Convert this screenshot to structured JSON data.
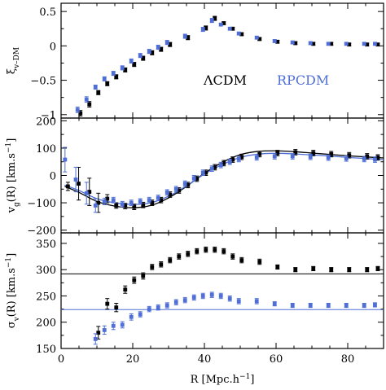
{
  "chart_data": [
    {
      "type": "scatter",
      "panel": "top",
      "ylabel": "ξ",
      "ylabel_sub": "v–DM",
      "xlim": [
        0,
        90
      ],
      "ylim": [
        -1.05,
        0.62
      ],
      "yticks": [
        -1,
        -0.5,
        0,
        0.5
      ],
      "ytick_labels": [
        "−1",
        "−0.5",
        "0",
        "0.5"
      ],
      "xticks": [
        0,
        20,
        40,
        60,
        80
      ],
      "legend": [
        {
          "label": "ΛCDM",
          "color": "#000000"
        },
        {
          "label": "RPCDM",
          "color": "#4f6fd6"
        }
      ],
      "series": [
        {
          "name": "ΛCDM",
          "color": "#000000",
          "x": [
            5,
            7.5,
            10,
            12.5,
            15,
            17.5,
            20,
            22.5,
            25,
            27.5,
            30,
            35,
            40,
            42.5,
            45,
            47.5,
            50,
            55,
            60,
            65,
            70,
            75,
            80,
            85,
            88
          ],
          "y": [
            -0.98,
            -0.85,
            -0.68,
            -0.55,
            -0.45,
            -0.35,
            -0.27,
            -0.18,
            -0.1,
            -0.05,
            0.02,
            0.12,
            0.26,
            0.4,
            0.33,
            0.25,
            0.17,
            0.1,
            0.06,
            0.04,
            0.03,
            0.03,
            0.02,
            0.02,
            0.02
          ],
          "err": [
            0.04,
            0.04,
            0.03,
            0.03,
            0.03,
            0.03,
            0.03,
            0.03,
            0.03,
            0.03,
            0.03,
            0.03,
            0.03,
            0.03,
            0.02,
            0.02,
            0.02,
            0.02,
            0.02,
            0.02,
            0.02,
            0.02,
            0.02,
            0.02,
            0.02
          ]
        },
        {
          "name": "RPCDM",
          "color": "#4f6fd6",
          "x": [
            5,
            7.5,
            10,
            12.5,
            15,
            17.5,
            20,
            22.5,
            25,
            27.5,
            30,
            35,
            40,
            42.5,
            45,
            47.5,
            50,
            55,
            60,
            65,
            70,
            75,
            80,
            85,
            88
          ],
          "y": [
            -0.93,
            -0.78,
            -0.6,
            -0.48,
            -0.4,
            -0.32,
            -0.22,
            -0.14,
            -0.08,
            -0.02,
            0.05,
            0.14,
            0.24,
            0.37,
            0.31,
            0.25,
            0.18,
            0.12,
            0.07,
            0.05,
            0.04,
            0.03,
            0.03,
            0.03,
            0.03
          ],
          "err": [
            0.04,
            0.04,
            0.03,
            0.03,
            0.03,
            0.03,
            0.03,
            0.03,
            0.03,
            0.03,
            0.03,
            0.03,
            0.03,
            0.03,
            0.02,
            0.02,
            0.02,
            0.02,
            0.02,
            0.02,
            0.02,
            0.02,
            0.02,
            0.02,
            0.02
          ]
        }
      ]
    },
    {
      "type": "scatter",
      "panel": "middle",
      "ylabel": "v",
      "ylabel_sub": "g",
      "ylabel_rest": "(R)  [km.s",
      "ylabel_sup": "−1",
      "ylabel_end": "]",
      "xlim": [
        0,
        90
      ],
      "ylim": [
        -210,
        210
      ],
      "yticks": [
        -200,
        -100,
        0,
        100,
        200
      ],
      "ytick_labels": [
        "−200",
        "−100",
        "0",
        "100",
        "200"
      ],
      "xticks": [
        0,
        20,
        40,
        60,
        80
      ],
      "curves": [
        {
          "name": "ΛCDM",
          "color": "#000000",
          "x": [
            1,
            5,
            10,
            15,
            20,
            25,
            30,
            35,
            40,
            45,
            50,
            55,
            60,
            65,
            70,
            75,
            80,
            85,
            90
          ],
          "y": [
            -40,
            -62,
            -95,
            -112,
            -118,
            -110,
            -82,
            -40,
            8,
            48,
            76,
            88,
            90,
            87,
            82,
            77,
            72,
            68,
            64
          ]
        },
        {
          "name": "RPCDM",
          "color": "#4f6fd6",
          "x": [
            1,
            5,
            10,
            15,
            20,
            25,
            30,
            35,
            40,
            45,
            50,
            55,
            60,
            65,
            70,
            75,
            80,
            85,
            90
          ],
          "y": [
            -35,
            -55,
            -85,
            -100,
            -106,
            -100,
            -76,
            -38,
            5,
            40,
            66,
            78,
            81,
            79,
            75,
            71,
            66,
            62,
            58
          ]
        }
      ],
      "series": [
        {
          "name": "ΛCDM",
          "color": "#000000",
          "x": [
            1.5,
            4.5,
            7.5,
            10,
            12.5,
            15,
            17.5,
            20,
            22.5,
            25,
            27.5,
            30,
            32.5,
            35,
            37.5,
            40,
            42.5,
            45,
            47.5,
            50,
            55,
            60,
            65,
            70,
            75,
            80,
            85,
            88
          ],
          "y": [
            -40,
            -30,
            -60,
            -100,
            -85,
            -110,
            -112,
            -115,
            -108,
            -100,
            -90,
            -70,
            -55,
            -35,
            -12,
            10,
            30,
            45,
            58,
            68,
            78,
            82,
            85,
            82,
            78,
            74,
            70,
            66
          ],
          "err": [
            15,
            60,
            50,
            35,
            15,
            10,
            10,
            10,
            10,
            10,
            10,
            10,
            10,
            10,
            10,
            10,
            10,
            10,
            10,
            10,
            10,
            10,
            10,
            10,
            10,
            10,
            10,
            10
          ]
        },
        {
          "name": "RPCDM",
          "color": "#4f6fd6",
          "x": [
            1.5,
            4.5,
            7.5,
            10,
            12.5,
            15,
            17.5,
            20,
            22.5,
            25,
            27.5,
            30,
            32.5,
            35,
            37.5,
            40,
            42.5,
            45,
            47.5,
            50,
            55,
            60,
            65,
            70,
            75,
            80,
            85,
            88
          ],
          "y": [
            58,
            -15,
            -65,
            -110,
            -95,
            -90,
            -105,
            -100,
            -95,
            -90,
            -82,
            -62,
            -50,
            -30,
            -10,
            10,
            25,
            38,
            50,
            60,
            66,
            70,
            70,
            68,
            65,
            62,
            60,
            58
          ],
          "err": [
            45,
            45,
            40,
            25,
            12,
            10,
            10,
            10,
            10,
            10,
            10,
            10,
            10,
            10,
            10,
            10,
            10,
            10,
            10,
            10,
            10,
            10,
            10,
            10,
            10,
            10,
            10,
            10
          ]
        }
      ]
    },
    {
      "type": "scatter",
      "panel": "bottom",
      "ylabel": "σ",
      "ylabel_sub": "v",
      "ylabel_rest": "(R)  [km.s",
      "ylabel_sup": "−1",
      "ylabel_end": "]",
      "xlabel": "R  [Mpc.h",
      "xlabel_sup": "−1",
      "xlabel_end": "]",
      "xlim": [
        0,
        90
      ],
      "ylim": [
        150,
        370
      ],
      "yticks": [
        150,
        200,
        250,
        300,
        350
      ],
      "ytick_labels": [
        "150",
        "200",
        "250",
        "300",
        "350"
      ],
      "xticks": [
        0,
        20,
        40,
        60,
        80
      ],
      "xtick_labels": [
        "0",
        "20",
        "40",
        "60",
        "80"
      ],
      "hlines": [
        {
          "name": "ΛCDM",
          "color": "#000000",
          "y": 292
        },
        {
          "name": "RPCDM",
          "color": "#4f6fd6",
          "y": 224
        }
      ],
      "series": [
        {
          "name": "ΛCDM",
          "color": "#000000",
          "x": [
            10,
            12.5,
            15,
            17.5,
            20,
            22.5,
            25,
            27.5,
            30,
            32.5,
            35,
            37.5,
            40,
            42.5,
            45,
            47.5,
            50,
            55,
            60,
            65,
            70,
            75,
            80,
            85,
            88
          ],
          "y": [
            180,
            235,
            228,
            262,
            280,
            288,
            305,
            310,
            318,
            325,
            330,
            335,
            338,
            338,
            335,
            325,
            318,
            315,
            305,
            300,
            302,
            300,
            300,
            300,
            302
          ],
          "err": [
            12,
            10,
            8,
            7,
            6,
            6,
            5,
            5,
            5,
            5,
            5,
            5,
            5,
            5,
            5,
            5,
            5,
            5,
            4,
            4,
            4,
            4,
            4,
            4,
            4
          ]
        },
        {
          "name": "RPCDM",
          "color": "#4f6fd6",
          "x": [
            10,
            12.5,
            15,
            17.5,
            20,
            22.5,
            25,
            27.5,
            30,
            32.5,
            35,
            37.5,
            40,
            42.5,
            45,
            47.5,
            50,
            55,
            60,
            65,
            70,
            75,
            80,
            85,
            88
          ],
          "y": [
            168,
            185,
            193,
            195,
            210,
            215,
            225,
            228,
            232,
            238,
            242,
            247,
            250,
            252,
            250,
            245,
            240,
            240,
            235,
            232,
            232,
            232,
            232,
            232,
            233
          ],
          "err": [
            10,
            8,
            7,
            6,
            6,
            5,
            5,
            5,
            5,
            5,
            5,
            5,
            5,
            5,
            5,
            5,
            5,
            5,
            4,
            4,
            4,
            4,
            4,
            4,
            4
          ]
        }
      ]
    }
  ]
}
